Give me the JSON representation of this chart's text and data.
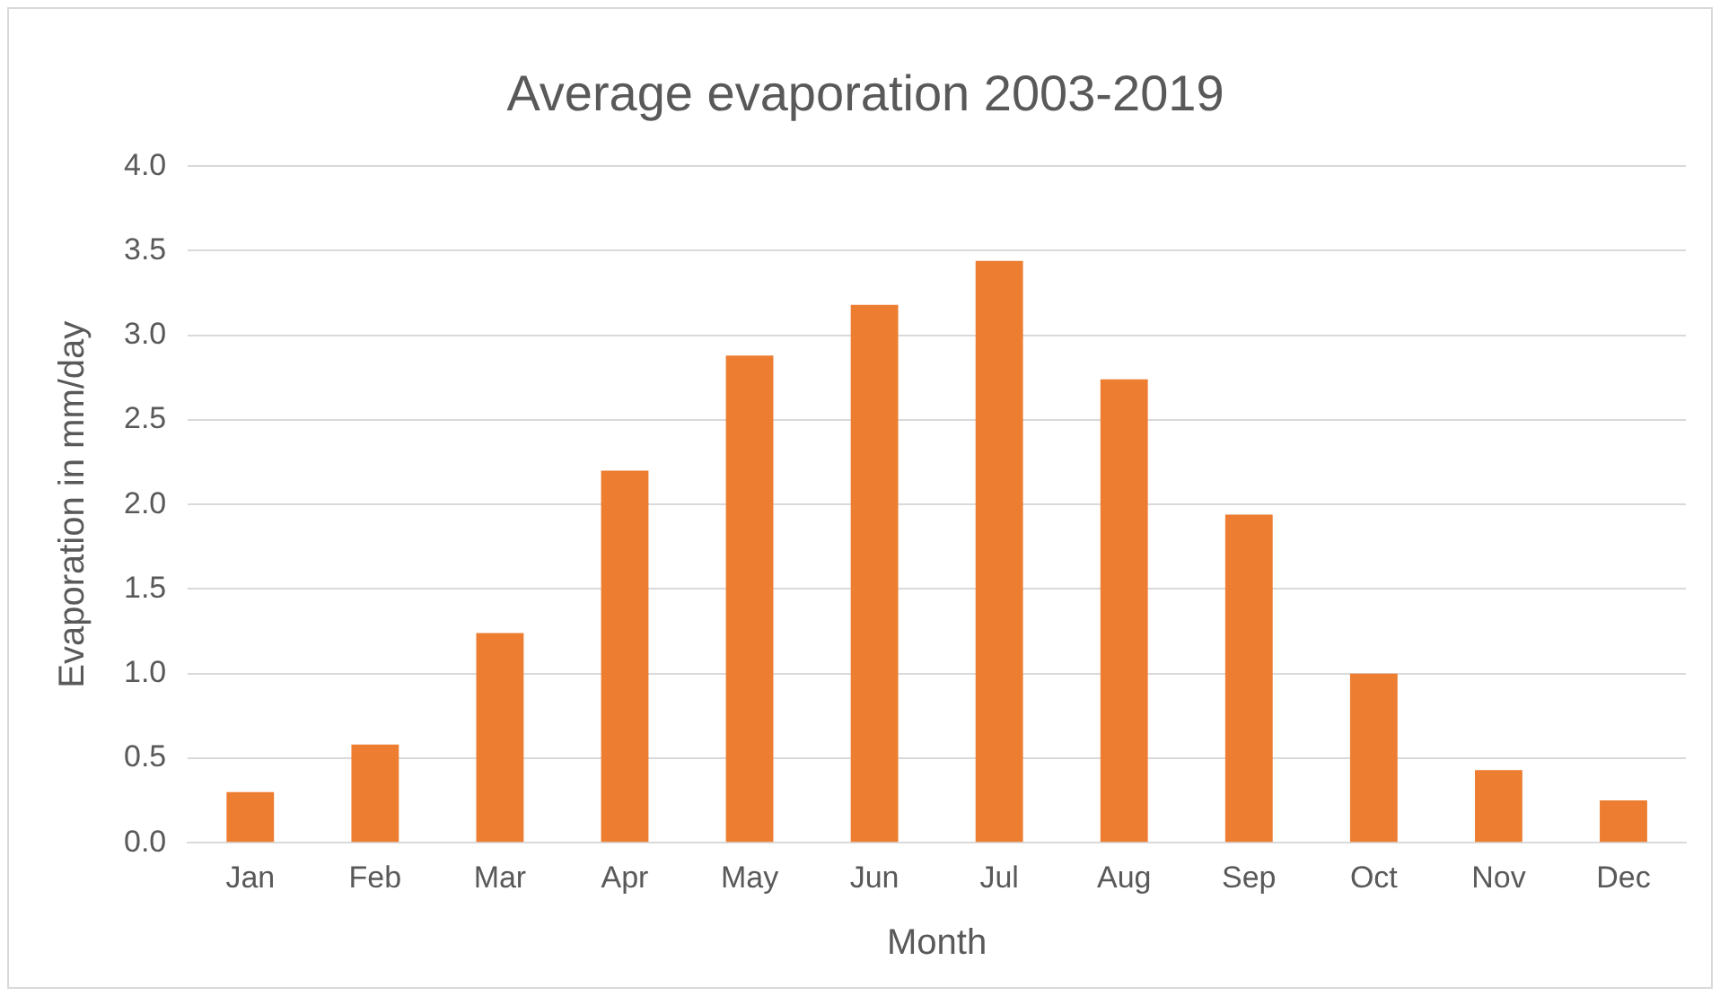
{
  "chart_data": {
    "type": "bar",
    "title": "Average evaporation 2003-2019",
    "xlabel": "Month",
    "ylabel": "Evaporation in mm/day",
    "categories": [
      "Jan",
      "Feb",
      "Mar",
      "Apr",
      "May",
      "Jun",
      "Jul",
      "Aug",
      "Sep",
      "Oct",
      "Nov",
      "Dec"
    ],
    "values": [
      0.3,
      0.58,
      1.24,
      2.2,
      2.88,
      3.18,
      3.44,
      2.74,
      1.94,
      1.0,
      0.43,
      0.25
    ],
    "color": "#ed7d31",
    "ylim": [
      0,
      4
    ],
    "yticks": [
      {
        "value": 0,
        "label": "0.0"
      },
      {
        "value": 0.5,
        "label": "0.5"
      },
      {
        "value": 1,
        "label": "1.0"
      },
      {
        "value": 1.5,
        "label": "1.5"
      },
      {
        "value": 2,
        "label": "2.0"
      },
      {
        "value": 2.5,
        "label": "2.5"
      },
      {
        "value": 3,
        "label": "3.0"
      },
      {
        "value": 3.5,
        "label": "3.5"
      },
      {
        "value": 4,
        "label": "4.0"
      }
    ],
    "grid": "y"
  }
}
